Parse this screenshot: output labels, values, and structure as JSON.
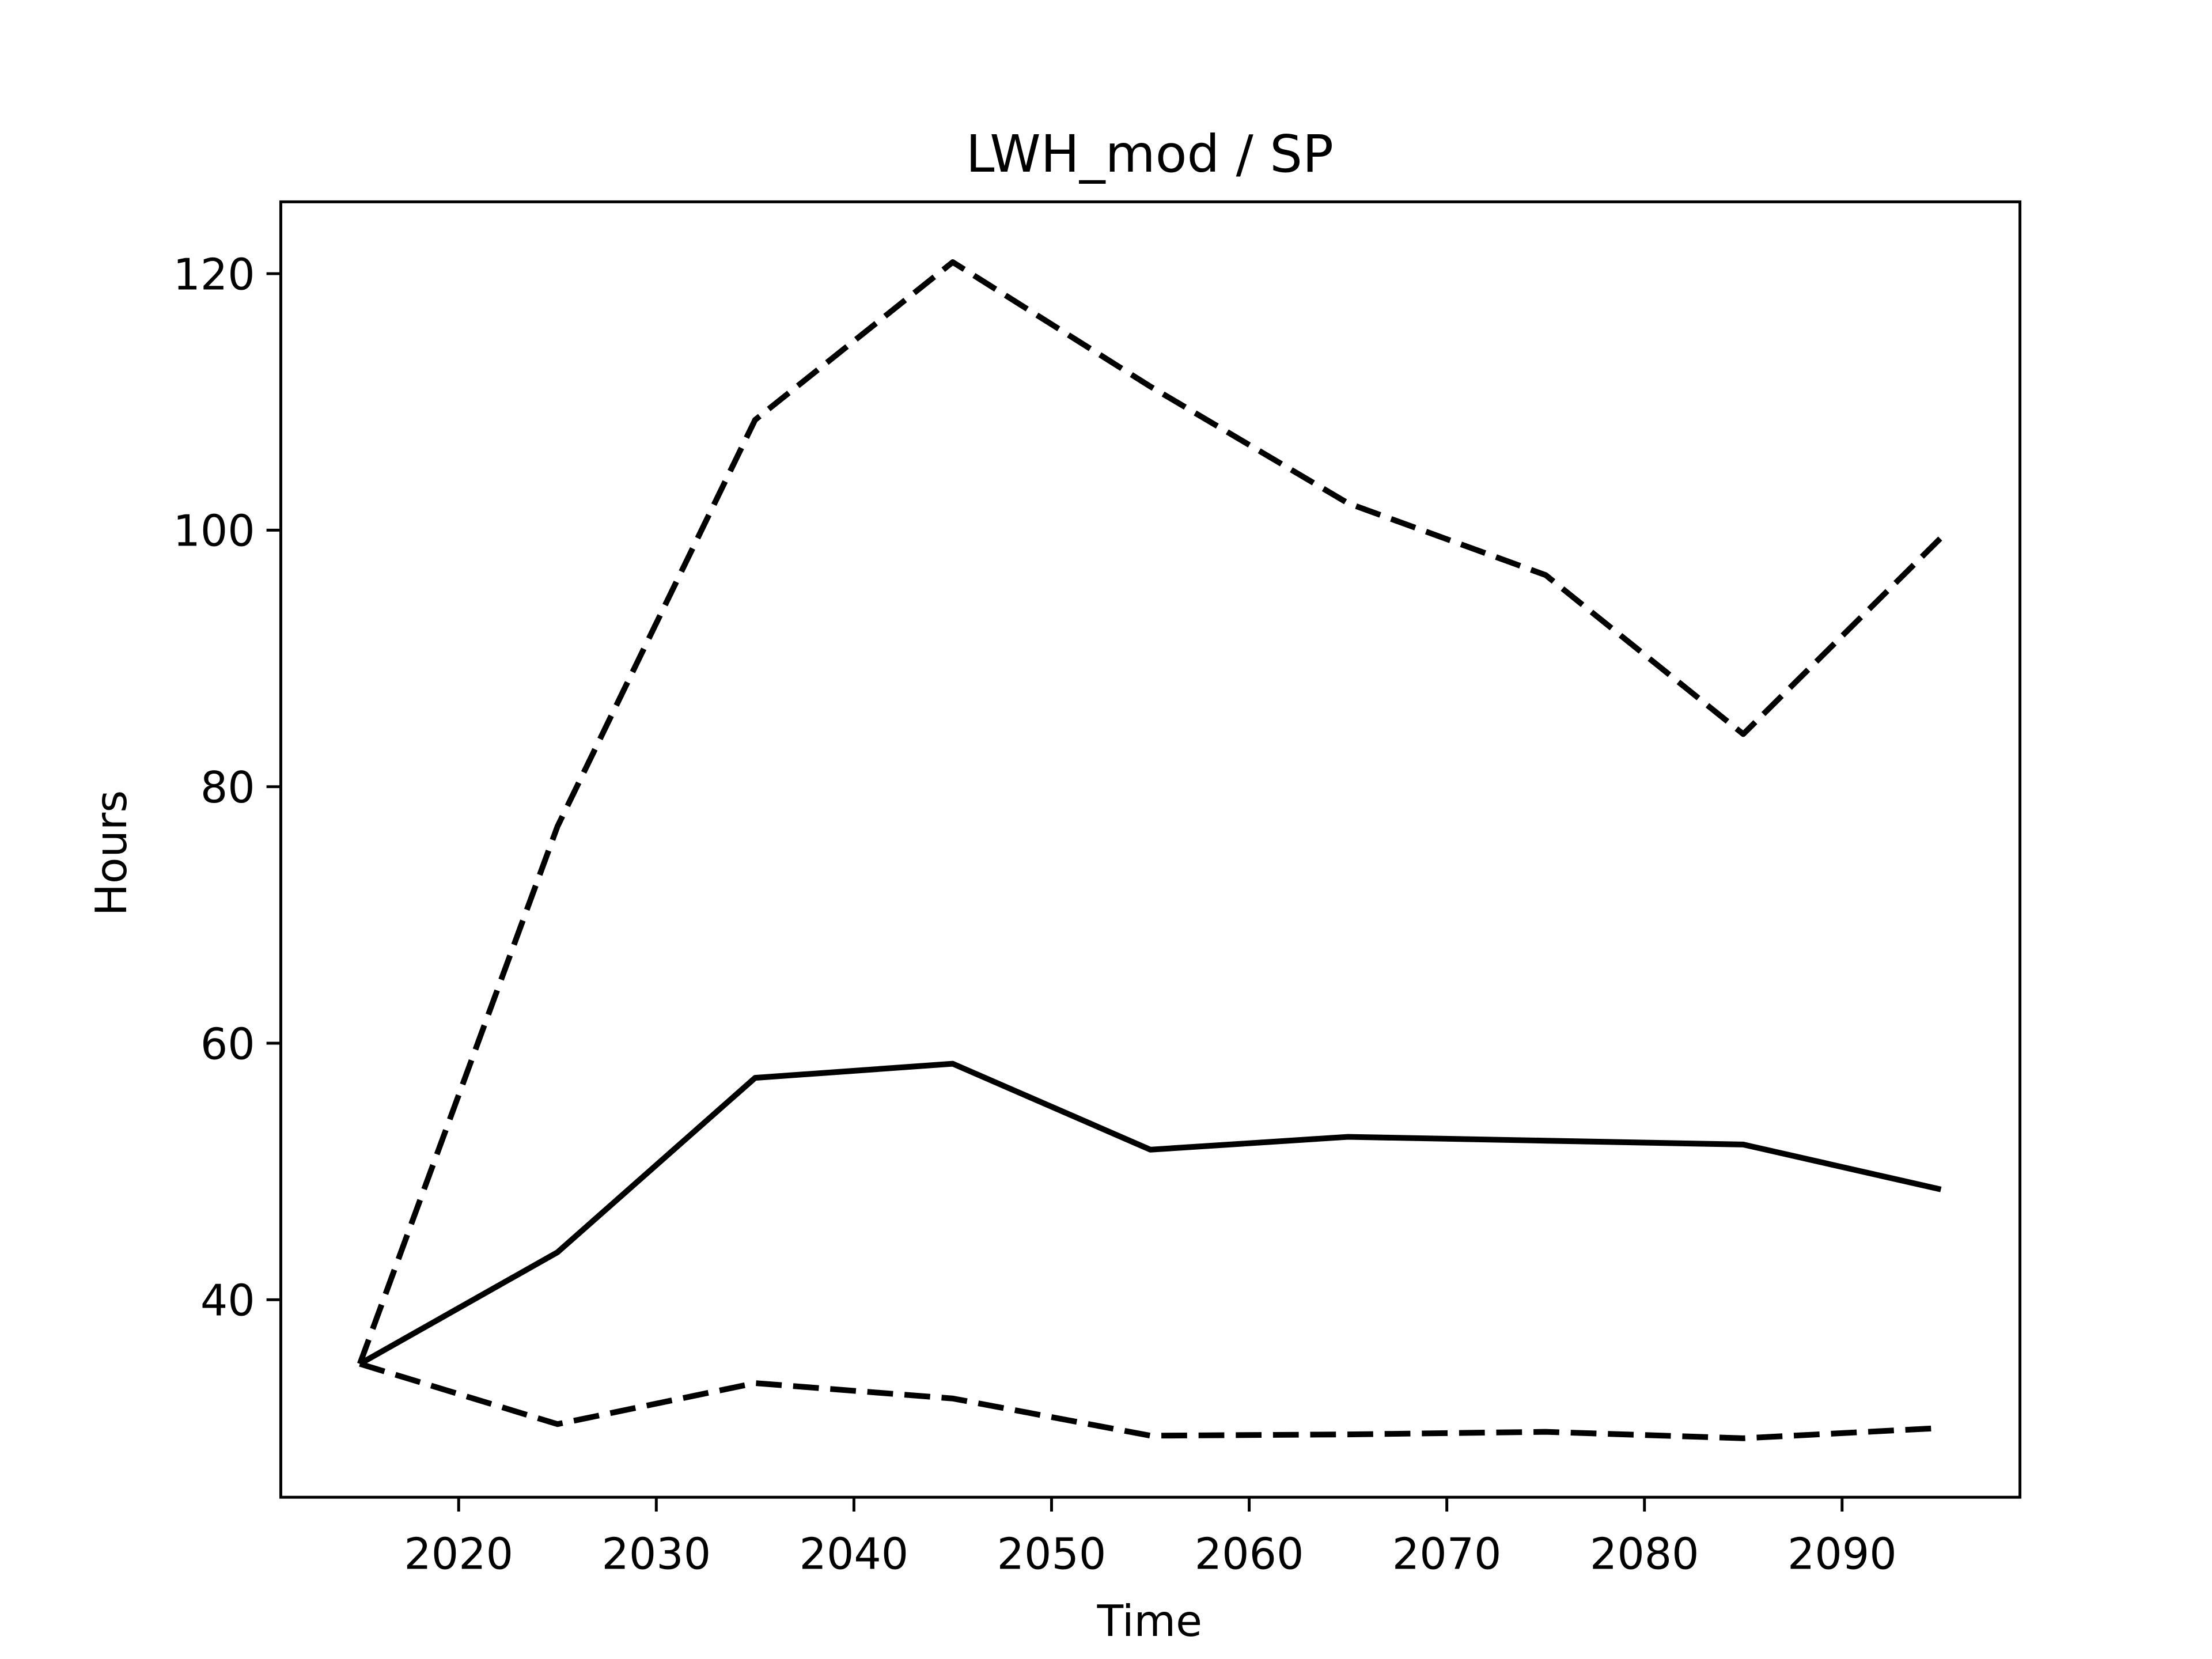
{
  "chart_data": {
    "type": "line",
    "title": "LWH_mod / SP",
    "x_label": "Time",
    "y_label": "Hours",
    "x": [
      2015,
      2025,
      2035,
      2045,
      2055,
      2065,
      2075,
      2085,
      2095
    ],
    "series": [
      {
        "color": "#000000",
        "dash": "solid",
        "values": [
          35,
          43.7,
          57.3,
          58.4,
          51.7,
          52.7,
          52.4,
          52.1,
          48.6
        ]
      },
      {
        "color": "#000000",
        "dash": "dashed",
        "values": [
          35,
          76.9,
          108.6,
          120.9,
          111.2,
          102.1,
          96.5,
          84.1,
          99.4
        ]
      },
      {
        "color": "#000000",
        "dash": "dashed",
        "values": [
          35,
          30.3,
          33.5,
          32.3,
          29.4,
          29.5,
          29.7,
          29.2,
          30.0
        ]
      }
    ],
    "xlim": [
      2011,
      2099
    ],
    "xticks": [
      2020,
      2030,
      2040,
      2050,
      2060,
      2070,
      2080,
      2090
    ],
    "ylim": [
      24.6,
      125.6
    ],
    "yticks": [
      40,
      60,
      80,
      100,
      120
    ],
    "grid": false
  }
}
